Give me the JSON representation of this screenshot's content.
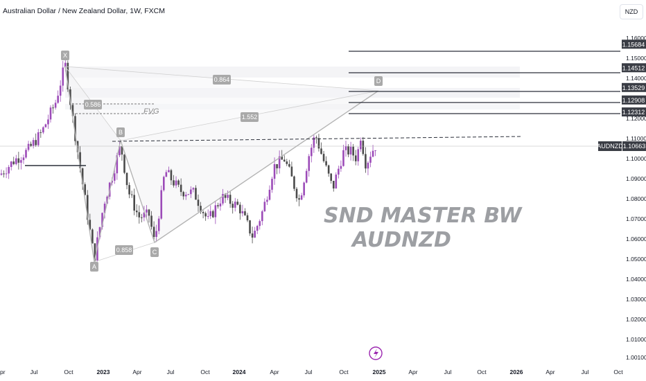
{
  "header": {
    "title": "Australian Dollar / New Zealand Dollar, 1W, FXCM",
    "currency": "NZD"
  },
  "symbol_badge": "AUDNZD",
  "watermark": {
    "line1": "SND MASTER BW",
    "line2": "AUDNZD"
  },
  "pattern": {
    "points": {
      "X": "X",
      "A": "A",
      "B": "B",
      "C": "C",
      "D": "D"
    },
    "ratios": {
      "xb": "0.586",
      "ac": "0.858",
      "bd": "1.552",
      "xd": "0.864"
    },
    "fvg_label": "FVG"
  },
  "chart_data": {
    "type": "candlestick",
    "symbol": "AUDNZD",
    "timeframe": "1W",
    "source": "FXCM",
    "current_price": 1.10663,
    "y_axis": {
      "ticks": [
        "1.16000",
        "1.15000",
        "1.14000",
        "1.13000",
        "1.12000",
        "1.11000",
        "1.10000",
        "1.09000",
        "1.08000",
        "1.07000",
        "1.06000",
        "1.05000",
        "1.04000",
        "1.03000",
        "1.02000",
        "1.01000",
        "1.00100"
      ],
      "range": [
        1.001,
        1.16
      ]
    },
    "x_axis": {
      "ticks": [
        "Apr",
        "Jul",
        "Oct",
        "2023",
        "Apr",
        "Jul",
        "Oct",
        "2024",
        "Apr",
        "Jul",
        "Oct",
        "2025",
        "Apr",
        "Jul",
        "Oct",
        "2026",
        "Apr",
        "Jul",
        "Oct"
      ]
    },
    "price_levels": [
      {
        "label": "1.15684",
        "value": 1.15684
      },
      {
        "label": "1.14512",
        "value": 1.14512
      },
      {
        "label": "1.13529",
        "value": 1.13529
      },
      {
        "label": "1.12908",
        "value": 1.12908
      },
      {
        "label": "1.12312",
        "value": 1.12312
      }
    ],
    "dashed_level": 1.1095,
    "harmonic_points": [
      {
        "name": "X",
        "price": 1.149
      },
      {
        "name": "A",
        "price": 1.0495
      },
      {
        "name": "B",
        "price": 1.108
      },
      {
        "name": "C",
        "price": 1.057
      },
      {
        "name": "D",
        "price": 1.135
      }
    ],
    "colors": {
      "bull": "#9c4bb8",
      "bear": "#4a4a4a",
      "level": "#2a2e39",
      "label_bg": "#3a3d45",
      "pattern_text": "#9a9a9a"
    }
  }
}
